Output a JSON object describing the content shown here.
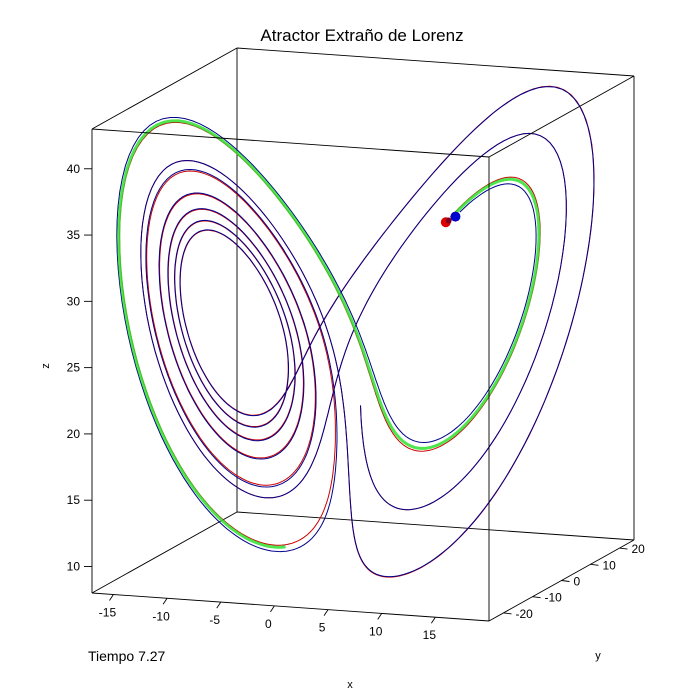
{
  "chart_data": {
    "type": "line",
    "title": "Atractor Extraño de Lorenz",
    "xlabel": "x",
    "ylabel": "y",
    "zlabel": "z",
    "xlim": [
      -17,
      20
    ],
    "ylim": [
      -25,
      25
    ],
    "zlim": [
      8,
      43
    ],
    "x_ticks": [
      -15,
      -10,
      -5,
      0,
      5,
      10,
      15
    ],
    "y_ticks": [
      -20,
      -10,
      0,
      10,
      20
    ],
    "z_ticks": [
      10,
      15,
      20,
      25,
      30,
      35,
      40
    ],
    "time_label": "Tiempo",
    "time_value": "7.27",
    "grid": false,
    "box": true,
    "series": [
      {
        "color": "#cc0000"
      },
      {
        "color": "#00008b"
      },
      {
        "color": "#30e030"
      }
    ],
    "markers": [
      {
        "color": "#dd0000"
      },
      {
        "color": "#0000cc"
      },
      {
        "color": "#800020"
      }
    ]
  }
}
